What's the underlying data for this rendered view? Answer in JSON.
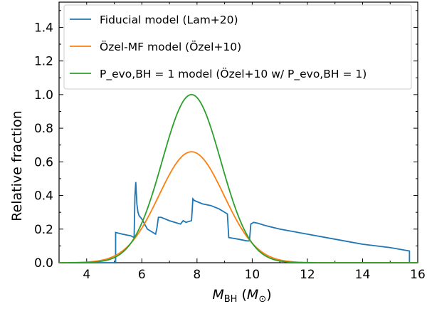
{
  "chart_data": {
    "type": "line",
    "xlim": [
      3,
      16
    ],
    "ylim": [
      0,
      1.55
    ],
    "xticks": [
      "4",
      "6",
      "8",
      "10",
      "12",
      "14",
      "16"
    ],
    "yticks": [
      "0.0",
      "0.2",
      "0.4",
      "0.6",
      "0.8",
      "1.0",
      "1.2",
      "1.4"
    ],
    "xlabel": "M_BH (M_⊙)",
    "ylabel": "Relative fraction",
    "legend_position": "top-left",
    "series": [
      {
        "name": "Fiducial model (Lam+20)",
        "color": "#1f77b4",
        "x": [
          3.0,
          5.05,
          5.05,
          5.3,
          5.6,
          5.72,
          5.75,
          5.78,
          5.82,
          5.86,
          5.9,
          6.0,
          6.2,
          6.4,
          6.5,
          6.55,
          6.6,
          6.7,
          7.0,
          7.2,
          7.4,
          7.5,
          7.6,
          7.8,
          7.82,
          7.85,
          7.9,
          8.2,
          8.5,
          8.8,
          9.0,
          9.1,
          9.15,
          9.5,
          9.8,
          9.9,
          9.95,
          10.05,
          10.2,
          10.5,
          11.0,
          12.0,
          13.0,
          14.0,
          15.0,
          15.7,
          15.7
        ],
        "y": [
          0.0,
          0.0,
          0.18,
          0.17,
          0.16,
          0.15,
          0.4,
          0.48,
          0.35,
          0.3,
          0.28,
          0.26,
          0.2,
          0.18,
          0.17,
          0.21,
          0.27,
          0.27,
          0.25,
          0.24,
          0.23,
          0.25,
          0.24,
          0.25,
          0.3,
          0.38,
          0.37,
          0.35,
          0.34,
          0.32,
          0.3,
          0.29,
          0.15,
          0.14,
          0.13,
          0.13,
          0.23,
          0.24,
          0.235,
          0.22,
          0.2,
          0.17,
          0.14,
          0.11,
          0.09,
          0.07,
          0.0
        ]
      },
      {
        "name": "Özel-MF model (Özel+10)",
        "color": "#ff7f0e",
        "mu": 7.8,
        "sigma": 1.18,
        "amp": 0.66,
        "x_range": [
          3,
          16
        ]
      },
      {
        "name": "P_evo,BH = 1 model (Özel+10 w/ P_evo,BH = 1)",
        "color": "#2ca02c",
        "mu": 7.8,
        "sigma": 1.06,
        "amp": 1.0,
        "x_range": [
          3,
          16
        ]
      }
    ]
  }
}
